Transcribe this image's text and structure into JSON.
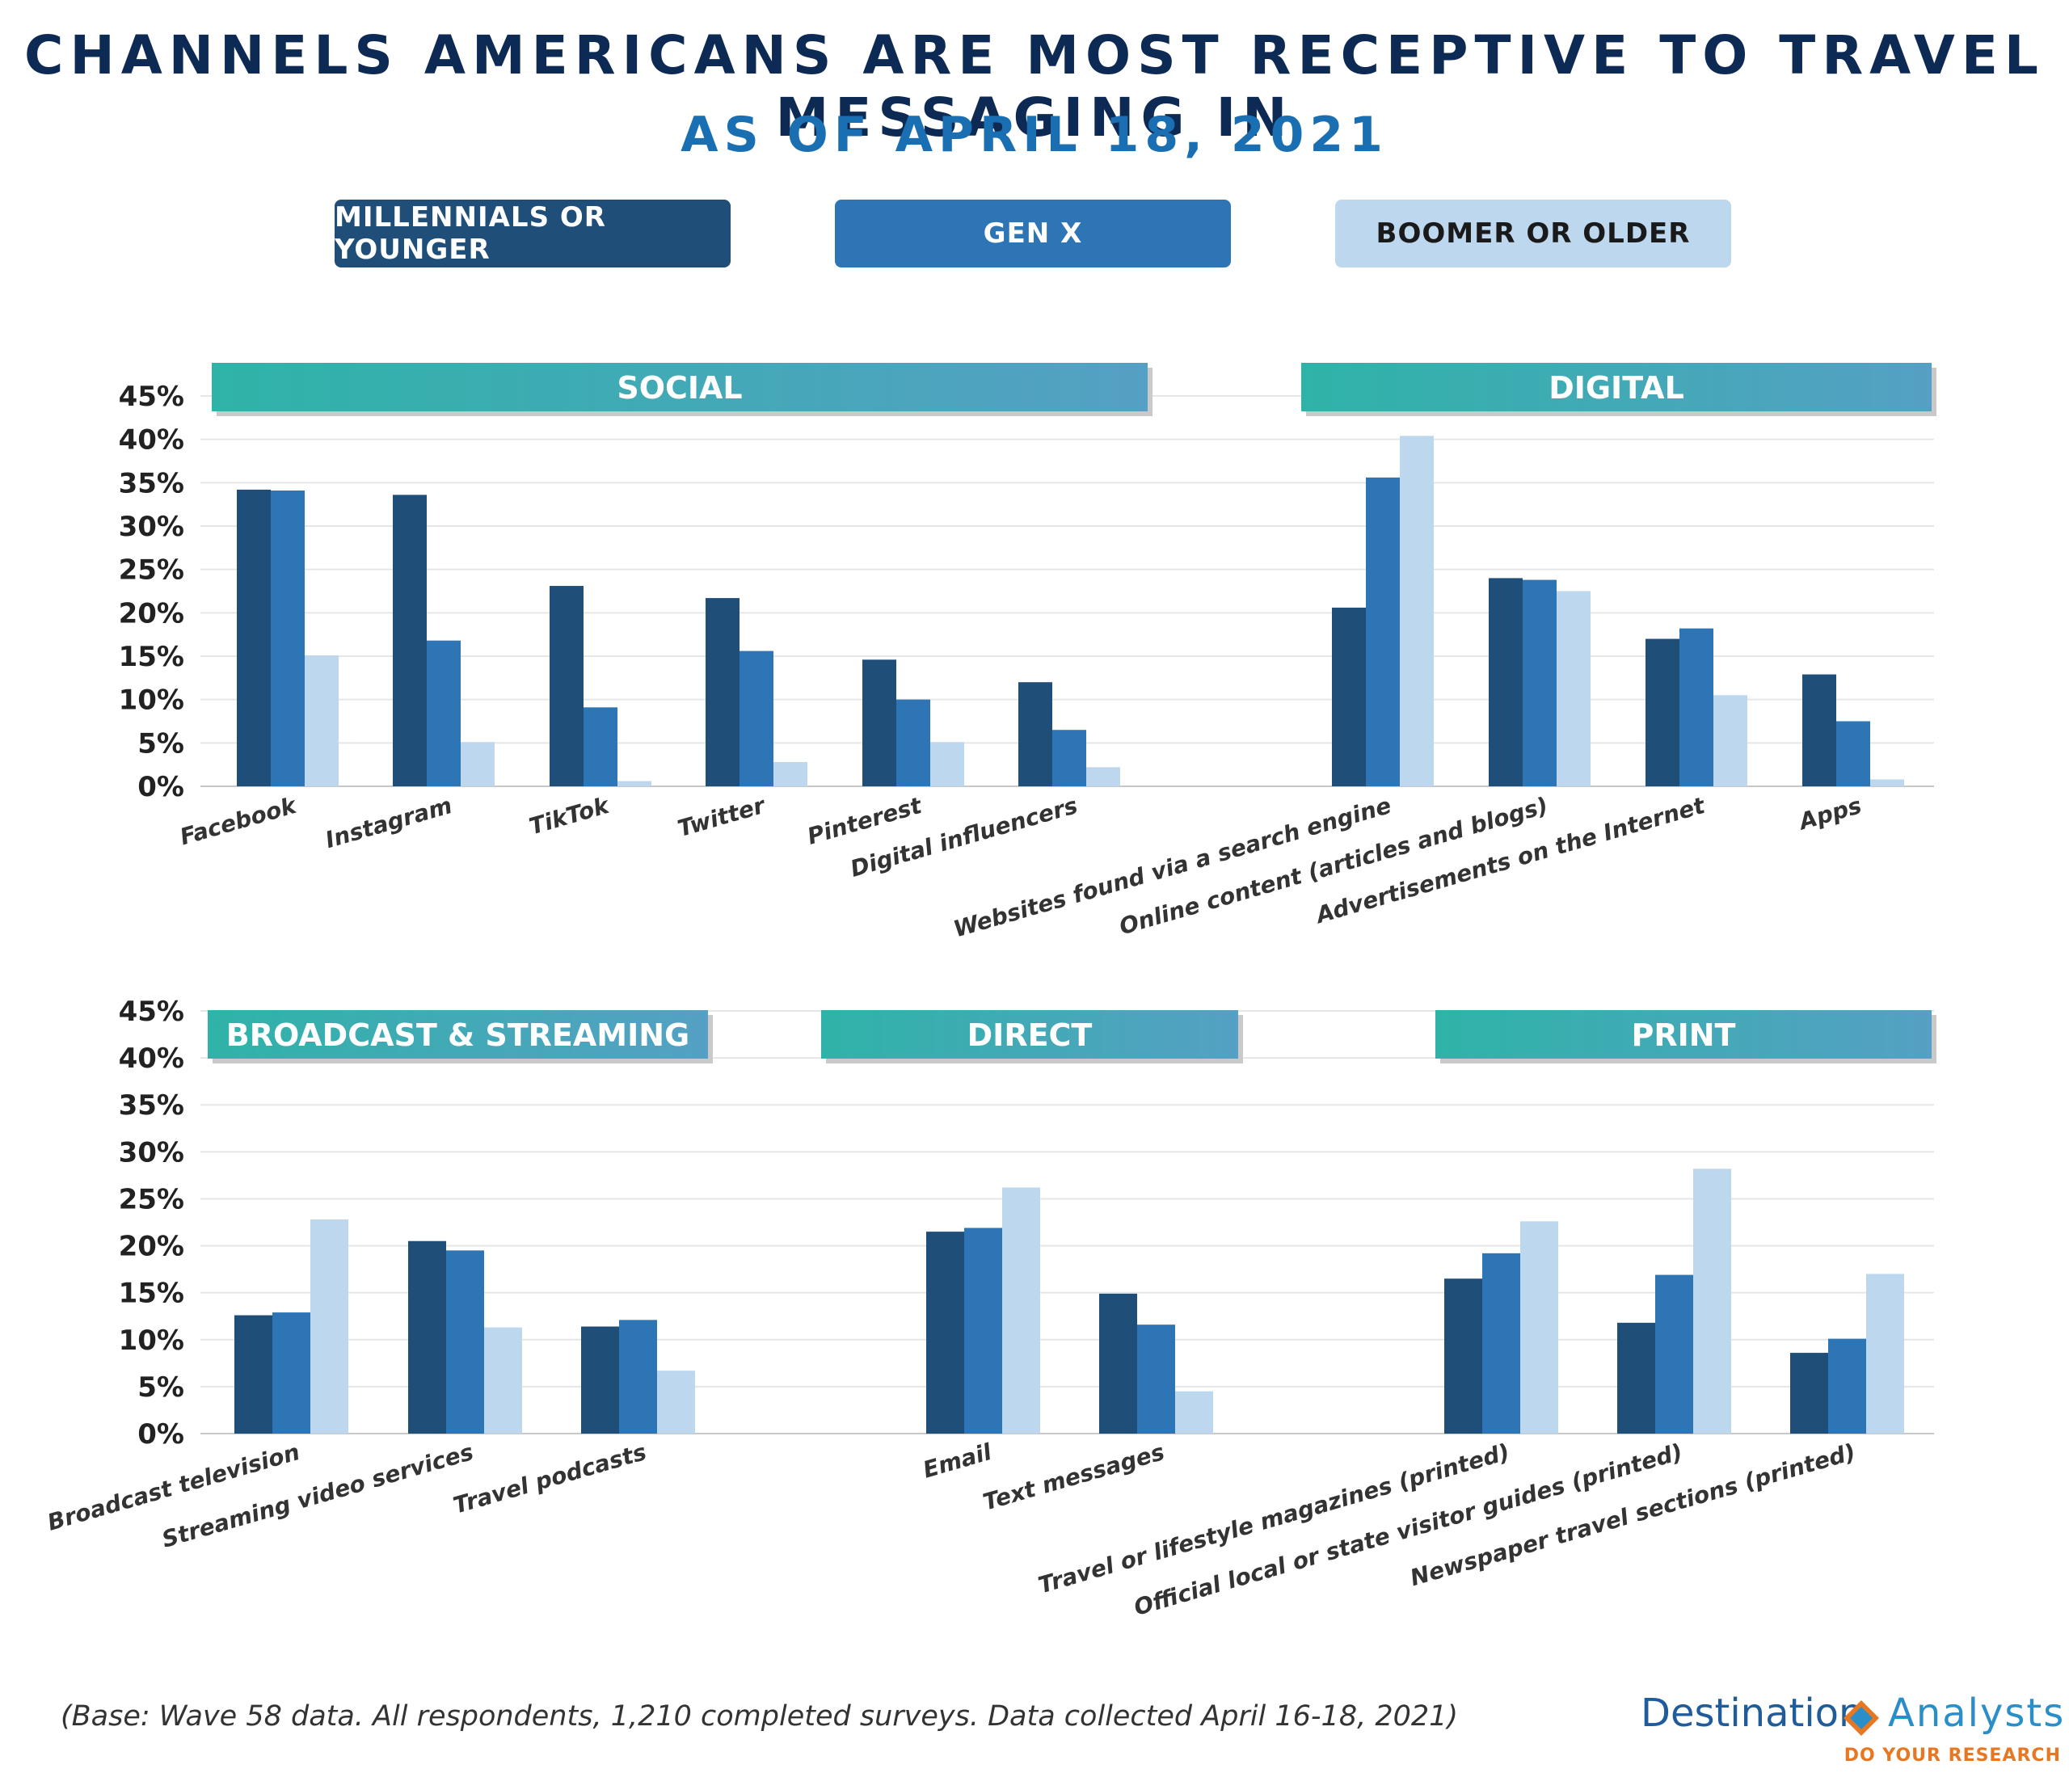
{
  "title": "CHANNELS AMERICANS ARE MOST RECEPTIVE TO TRAVEL MESSAGING IN",
  "subtitle": "AS OF APRIL 18, 2021",
  "legend": [
    {
      "label": "MILLENNIALS OR YOUNGER",
      "color": "#1f4e79"
    },
    {
      "label": "GEN X",
      "color": "#2e75b6"
    },
    {
      "label": "BOOMER OR OLDER",
      "color": "#bdd7ee"
    }
  ],
  "footnote": "(Base: Wave 58 data. All respondents, 1,210 completed surveys. Data collected April 16-18, 2021)",
  "logo": {
    "name_part1": "Destination",
    "name_part2": "Analysts",
    "tagline": "DO YOUR RESEARCH"
  },
  "chart_data": [
    {
      "type": "bar",
      "panel": "top",
      "ylim": [
        0,
        45
      ],
      "yticks": [
        0,
        5,
        10,
        15,
        20,
        25,
        30,
        35,
        40,
        45
      ],
      "tick_format": "{v}%",
      "series_names": [
        "MILLENNIALS OR YOUNGER",
        "GEN X",
        "BOOMER OR OLDER"
      ],
      "groups": [
        {
          "name": "SOCIAL",
          "categories": [
            "Facebook",
            "Instagram",
            "TikTok",
            "Twitter",
            "Pinterest",
            "Digital influencers"
          ],
          "values": [
            [
              34.2,
              34.1,
              15.1
            ],
            [
              33.6,
              16.8,
              5.1
            ],
            [
              23.1,
              9.1,
              0.6
            ],
            [
              21.7,
              15.6,
              2.8
            ],
            [
              14.6,
              10.0,
              5.1
            ],
            [
              12.0,
              6.5,
              2.2
            ]
          ]
        },
        {
          "name": "DIGITAL",
          "categories": [
            "Websites found via a search engine",
            "Online content (articles and blogs)",
            "Advertisements on the Internet",
            "Apps"
          ],
          "values": [
            [
              20.6,
              35.6,
              40.4
            ],
            [
              24.0,
              23.8,
              22.5
            ],
            [
              17.0,
              18.2,
              10.5
            ],
            [
              12.9,
              7.5,
              0.8
            ]
          ]
        }
      ]
    },
    {
      "type": "bar",
      "panel": "bottom",
      "ylim": [
        0,
        45
      ],
      "yticks": [
        0,
        5,
        10,
        15,
        20,
        25,
        30,
        35,
        40,
        45
      ],
      "tick_format": "{v}%",
      "series_names": [
        "MILLENNIALS OR YOUNGER",
        "GEN X",
        "BOOMER OR OLDER"
      ],
      "groups": [
        {
          "name": "BROADCAST & STREAMING",
          "categories": [
            "Broadcast television",
            "Streaming video services",
            "Travel podcasts"
          ],
          "values": [
            [
              12.6,
              12.9,
              22.8
            ],
            [
              20.5,
              19.5,
              11.3
            ],
            [
              11.4,
              12.1,
              6.7
            ]
          ]
        },
        {
          "name": "DIRECT",
          "categories": [
            "Email",
            "Text messages"
          ],
          "values": [
            [
              21.5,
              21.9,
              26.2
            ],
            [
              14.9,
              11.6,
              4.5
            ]
          ]
        },
        {
          "name": "PRINT",
          "categories": [
            "Travel or lifestyle magazines (printed)",
            "Official local or state visitor guides (printed)",
            "Newspaper travel sections (printed)"
          ],
          "values": [
            [
              16.5,
              19.2,
              22.6
            ],
            [
              11.8,
              16.9,
              28.2
            ],
            [
              8.6,
              10.1,
              17.0
            ]
          ]
        }
      ]
    }
  ]
}
